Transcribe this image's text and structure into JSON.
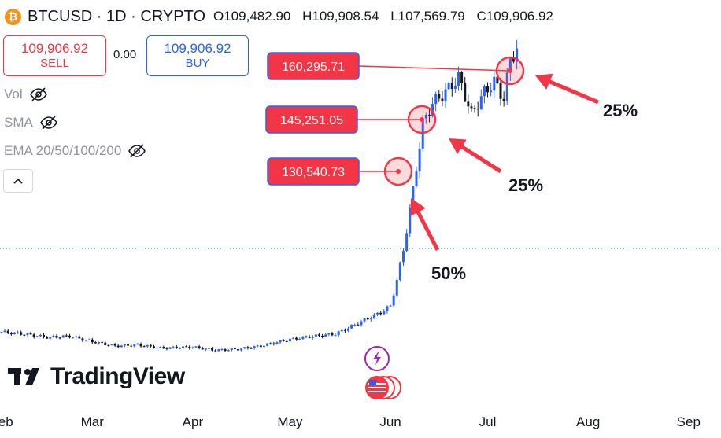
{
  "header": {
    "symbol": "BTCUSD",
    "timeframe": "1D",
    "exchange": "CRYPTO",
    "sep": "·",
    "open_label": "O",
    "open": "109,482.90",
    "high_label": "H",
    "high": "109,908.54",
    "low_label": "L",
    "low": "107,569.79",
    "close_label": "C",
    "close": "109,906.92",
    "logo_glyph": "₿"
  },
  "trade": {
    "sell_price": "109,906.92",
    "sell_label": "SELL",
    "spread": "0.00",
    "buy_price": "109,906.92",
    "buy_label": "BUY"
  },
  "indicators": [
    {
      "label": "Vol"
    },
    {
      "label": "SMA"
    },
    {
      "label": "EMA 20/50/100/200"
    }
  ],
  "branding": {
    "name": "TradingView"
  },
  "colors": {
    "up": "#2962ff",
    "down": "#131722",
    "accent": "#f23645",
    "buy": "#2962ff",
    "sell": "#f23645"
  },
  "chart_data": {
    "type": "line",
    "x_axis_labels": [
      "Feb",
      "Mar",
      "Apr",
      "May",
      "Jun",
      "Jul",
      "Aug",
      "Sep"
    ],
    "hline_style": "dotted",
    "series": [
      {
        "values": [
          {
            "x": "Feb 01",
            "y": 34000
          },
          {
            "x": "Feb 08",
            "y": 33000
          },
          {
            "x": "Feb 15",
            "y": 31500
          },
          {
            "x": "Feb 22",
            "y": 32000
          },
          {
            "x": "Mar 01",
            "y": 29500
          },
          {
            "x": "Mar 08",
            "y": 27500
          },
          {
            "x": "Mar 15",
            "y": 28000
          },
          {
            "x": "Mar 22",
            "y": 26500
          },
          {
            "x": "Apr 01",
            "y": 27000
          },
          {
            "x": "Apr 08",
            "y": 25500
          },
          {
            "x": "Apr 15",
            "y": 26000
          },
          {
            "x": "Apr 22",
            "y": 27500
          },
          {
            "x": "May 01",
            "y": 30500
          },
          {
            "x": "May 08",
            "y": 32000
          },
          {
            "x": "May 15",
            "y": 33000
          },
          {
            "x": "May 22",
            "y": 38000
          },
          {
            "x": "May 29",
            "y": 43000
          },
          {
            "x": "Jun 01",
            "y": 46000
          },
          {
            "x": "Jun 03",
            "y": 58000
          },
          {
            "x": "Jun 05",
            "y": 72000
          },
          {
            "x": "Jun 08",
            "y": 100000
          },
          {
            "x": "Jun 11",
            "y": 130540.73
          },
          {
            "x": "Jun 14",
            "y": 140000
          },
          {
            "x": "Jun 18",
            "y": 145251.05
          },
          {
            "x": "Jun 22",
            "y": 152000
          },
          {
            "x": "Jun 26",
            "y": 135000
          },
          {
            "x": "Jun 30",
            "y": 145000
          },
          {
            "x": "Jul 03",
            "y": 150000
          },
          {
            "x": "Jul 06",
            "y": 142000
          },
          {
            "x": "Jul 08",
            "y": 160295.71
          },
          {
            "x": "Jul 10",
            "y": 165000
          }
        ]
      }
    ],
    "annotations": [
      {
        "price": "130,540.73",
        "pct": "50%"
      },
      {
        "price": "145,251.05",
        "pct": "25%"
      },
      {
        "price": "160,295.71",
        "pct": "25%"
      }
    ]
  }
}
